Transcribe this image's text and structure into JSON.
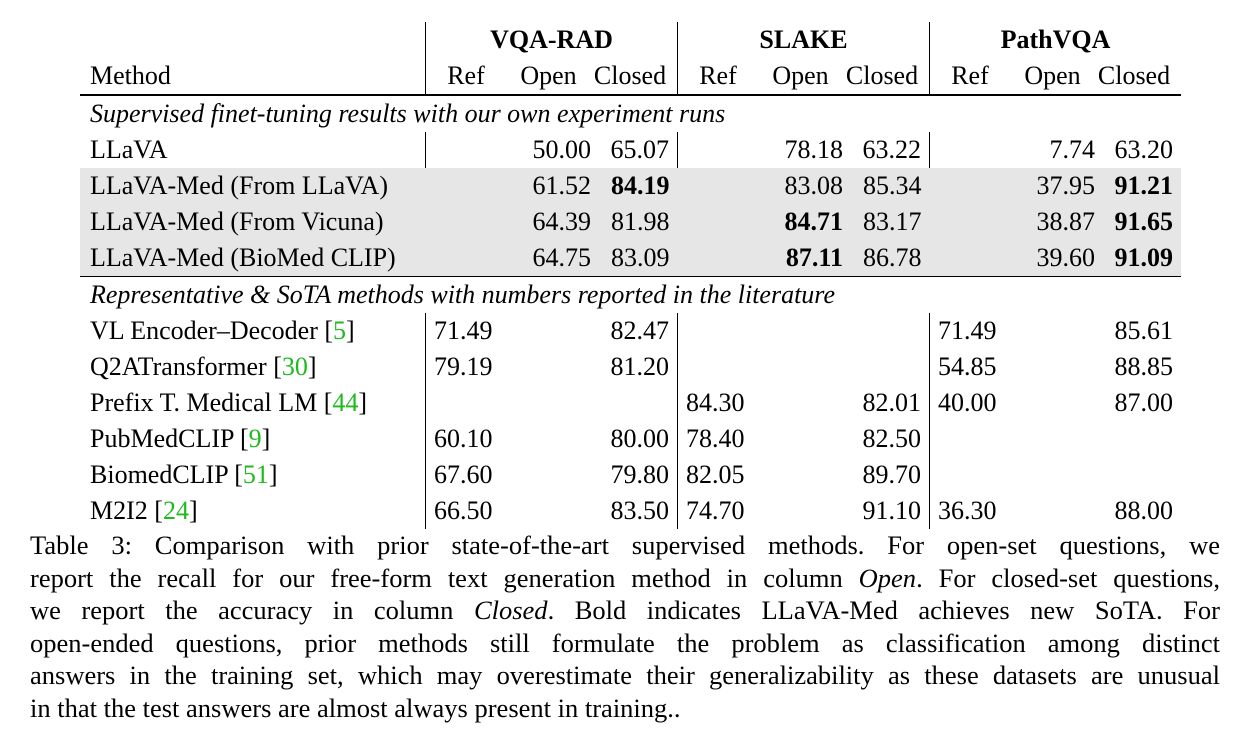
{
  "table": {
    "groups": [
      "VQA-RAD",
      "SLAKE",
      "PathVQA"
    ],
    "method_header": "Method",
    "col_labels": {
      "ref": "Ref",
      "open": "Open",
      "closed": "Closed"
    },
    "section1_title": "Supervised finet-tuning results with our own experiment runs",
    "section2_title": "Representative & SoTA methods with numbers reported in the literature",
    "rows": [
      {
        "method": "LLaVA",
        "cite": "",
        "vqarad": [
          "",
          "50.00",
          "65.07"
        ],
        "slake": [
          "",
          "78.18",
          "63.22"
        ],
        "pathvqa": [
          "",
          "7.74",
          "63.20"
        ]
      },
      {
        "method": "LLaVA-Med (From LLaVA)",
        "cite": "",
        "vqarad": [
          "",
          "61.52",
          "84.19"
        ],
        "slake": [
          "",
          "83.08",
          "85.34"
        ],
        "pathvqa": [
          "",
          "37.95",
          "91.21"
        ]
      },
      {
        "method": "LLaVA-Med (From Vicuna)",
        "cite": "",
        "vqarad": [
          "",
          "64.39",
          "81.98"
        ],
        "slake": [
          "",
          "84.71",
          "83.17"
        ],
        "pathvqa": [
          "",
          "38.87",
          "91.65"
        ]
      },
      {
        "method": "LLaVA-Med (BioMed CLIP)",
        "cite": "",
        "vqarad": [
          "",
          "64.75",
          "83.09"
        ],
        "slake": [
          "",
          "87.11",
          "86.78"
        ],
        "pathvqa": [
          "",
          "39.60",
          "91.09"
        ]
      },
      {
        "method": "VL Encoder–Decoder ",
        "cite": "5",
        "vqarad": [
          "71.49",
          "",
          "82.47"
        ],
        "slake": [
          "",
          "",
          ""
        ],
        "pathvqa": [
          "71.49",
          "",
          "85.61"
        ]
      },
      {
        "method": "Q2ATransformer ",
        "cite": "30",
        "vqarad": [
          "79.19",
          "",
          "81.20"
        ],
        "slake": [
          "",
          "",
          ""
        ],
        "pathvqa": [
          "54.85",
          "",
          "88.85"
        ]
      },
      {
        "method": "Prefix T. Medical LM ",
        "cite": "44",
        "vqarad": [
          "",
          "",
          ""
        ],
        "slake": [
          "84.30",
          "",
          "82.01"
        ],
        "pathvqa": [
          "40.00",
          "",
          "87.00"
        ]
      },
      {
        "method": "PubMedCLIP ",
        "cite": "9",
        "vqarad": [
          "60.10",
          "",
          "80.00"
        ],
        "slake": [
          "78.40",
          "",
          "82.50"
        ],
        "pathvqa": [
          "",
          "",
          ""
        ]
      },
      {
        "method": "BiomedCLIP ",
        "cite": "51",
        "vqarad": [
          "67.60",
          "",
          "79.80"
        ],
        "slake": [
          "82.05",
          "",
          "89.70"
        ],
        "pathvqa": [
          "",
          "",
          ""
        ]
      },
      {
        "method": "M2I2 ",
        "cite": "24",
        "vqarad": [
          "66.50",
          "",
          "83.50"
        ],
        "slake": [
          "74.70",
          "",
          "91.10"
        ],
        "pathvqa": [
          "36.30",
          "",
          "88.00"
        ]
      }
    ]
  },
  "caption": {
    "l1": "Table 3: Comparison with prior state-of-the-art supervised methods.  For open-set questions, we",
    "l2a": "report the recall for our free-form text generation method in column ",
    "l2b": "Open",
    "l2c": ". For closed-set questions,",
    "l3a": "we report the accuracy in column ",
    "l3b": "Closed",
    "l3c": ".  Bold indicates LLaVA-Med achieves new SoTA. For",
    "l4": "open-ended questions, prior methods still formulate the problem as classification among distinct",
    "l5": "answers in the training set, which may overestimate their generalizability as these datasets are unusual",
    "l6": "in that the test answers are almost always present in training.."
  }
}
